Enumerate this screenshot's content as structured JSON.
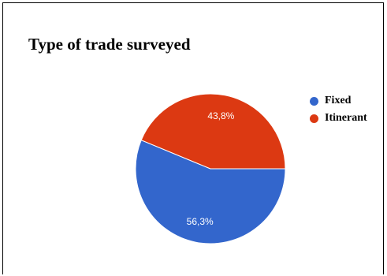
{
  "chart_data": {
    "type": "pie",
    "title": "Type of trade surveyed",
    "categories": [
      "Fixed",
      "Itinerant"
    ],
    "values": [
      56.3,
      43.8
    ],
    "labels": [
      "56,3%",
      "43,8%"
    ],
    "colors": [
      "#3366cc",
      "#dc3912"
    ],
    "legend_position": "right"
  }
}
